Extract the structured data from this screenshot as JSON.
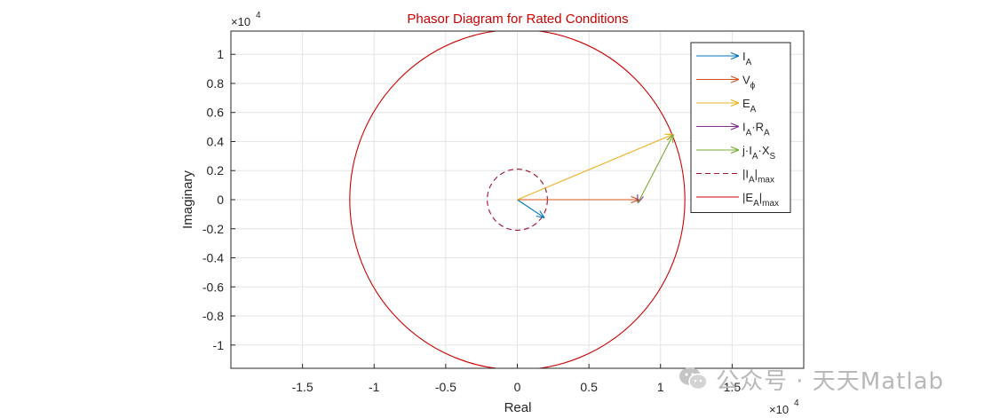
{
  "chart_data": {
    "type": "phasor",
    "title": "Phasor Diagram for Rated Conditions",
    "xlabel": "Real",
    "ylabel": "Imaginary",
    "x_exponent_label": "×10",
    "x_exponent_power": "4",
    "y_exponent_label": "×10",
    "y_exponent_power": "4",
    "scale": 10000,
    "xlim": [
      -2,
      2
    ],
    "ylim": [
      -1.16,
      1.16
    ],
    "xticks": [
      -1.5,
      -1,
      -0.5,
      0,
      0.5,
      1,
      1.5
    ],
    "xtick_labels": [
      "-1.5",
      "-1",
      "-0.5",
      "0",
      "0.5",
      "1",
      "1.5"
    ],
    "yticks": [
      1,
      0.8,
      0.6,
      0.4,
      0.2,
      0,
      -0.2,
      -0.4,
      -0.6,
      -0.8,
      -1
    ],
    "ytick_labels": [
      "1",
      "0.8",
      "0.6",
      "0.4",
      "0.2",
      "0",
      "-0.2",
      "-0.4",
      "-0.6",
      "-0.8",
      "-1"
    ],
    "grid": true,
    "legend_placement": "right",
    "phasors": [
      {
        "id": "ia",
        "color": "#0072bd",
        "start": [
          0,
          0
        ],
        "end": [
          0.19,
          -0.125
        ]
      },
      {
        "id": "vphi",
        "color": "#d95319",
        "start": [
          0,
          0
        ],
        "end": [
          0.85,
          0
        ]
      },
      {
        "id": "ea",
        "color": "#edb120",
        "start": [
          0,
          0
        ],
        "end": [
          1.09,
          0.45
        ]
      },
      {
        "id": "iara",
        "color": "#7e2f8e",
        "start": [
          0.85,
          0
        ],
        "end": [
          0.842,
          -0.023
        ]
      },
      {
        "id": "jiaxs",
        "color": "#77ac30",
        "start": [
          0.842,
          -0.023
        ],
        "end": [
          1.09,
          0.45
        ]
      }
    ],
    "circles": [
      {
        "id": "ia_max",
        "color": "#a2142f",
        "dashed": true,
        "radius": 0.21
      },
      {
        "id": "ea_max",
        "color": "#cc0000",
        "dashed": false,
        "radius": 1.17
      }
    ],
    "legend": [
      {
        "base": "I",
        "sub": "A",
        "rest": "",
        "sub2": "",
        "style": "arrow",
        "color": "#0072bd"
      },
      {
        "base": "V",
        "sub": "ϕ",
        "rest": "",
        "sub2": "",
        "style": "arrow",
        "color": "#d95319"
      },
      {
        "base": "E",
        "sub": "A",
        "rest": "",
        "sub2": "",
        "style": "arrow",
        "color": "#edb120"
      },
      {
        "base": "I",
        "sub": "A",
        "rest": "·R",
        "sub2": "A",
        "style": "arrow",
        "color": "#7e2f8e"
      },
      {
        "base": "j·I",
        "sub": "A",
        "rest": "·X",
        "sub2": "S",
        "style": "arrow",
        "color": "#77ac30"
      },
      {
        "base": "|I",
        "sub": "A",
        "rest": "|",
        "sub2": "max",
        "style": "dashed",
        "color": "#a2142f"
      },
      {
        "base": "|E",
        "sub": "A",
        "rest": "|",
        "sub2": "max",
        "style": "solid",
        "color": "#cc0000"
      }
    ]
  },
  "watermark": {
    "text": "公众号 · 天天Matlab",
    "icon": "wechat-logo-icon"
  }
}
